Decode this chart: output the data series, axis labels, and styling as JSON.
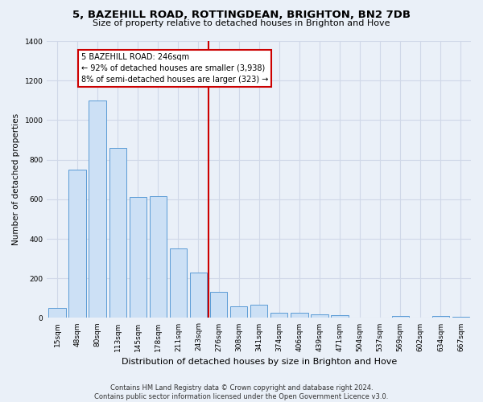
{
  "title1": "5, BAZEHILL ROAD, ROTTINGDEAN, BRIGHTON, BN2 7DB",
  "title2": "Size of property relative to detached houses in Brighton and Hove",
  "xlabel": "Distribution of detached houses by size in Brighton and Hove",
  "ylabel": "Number of detached properties",
  "footer1": "Contains HM Land Registry data © Crown copyright and database right 2024.",
  "footer2": "Contains public sector information licensed under the Open Government Licence v3.0.",
  "categories": [
    "15sqm",
    "48sqm",
    "80sqm",
    "113sqm",
    "145sqm",
    "178sqm",
    "211sqm",
    "243sqm",
    "276sqm",
    "308sqm",
    "341sqm",
    "374sqm",
    "406sqm",
    "439sqm",
    "471sqm",
    "504sqm",
    "537sqm",
    "569sqm",
    "602sqm",
    "634sqm",
    "667sqm"
  ],
  "values": [
    50,
    750,
    1100,
    860,
    610,
    615,
    350,
    230,
    130,
    60,
    65,
    25,
    25,
    20,
    12,
    0,
    0,
    8,
    0,
    10,
    5
  ],
  "bar_color": "#cce0f5",
  "bar_edge_color": "#5b9bd5",
  "vline_x": 7.5,
  "vline_color": "#cc0000",
  "annotation_title": "5 BAZEHILL ROAD: 246sqm",
  "annotation_line1": "← 92% of detached houses are smaller (3,938)",
  "annotation_line2": "8% of semi-detached houses are larger (323) →",
  "annotation_box_color": "#ffffff",
  "annotation_box_edge": "#cc0000",
  "ylim": [
    0,
    1400
  ],
  "yticks": [
    0,
    200,
    400,
    600,
    800,
    1000,
    1200,
    1400
  ],
  "grid_color": "#d0d8e8",
  "bg_color": "#eaf0f8",
  "title1_fontsize": 9.5,
  "title2_fontsize": 8.0,
  "xlabel_fontsize": 8.0,
  "ylabel_fontsize": 7.5,
  "footer_fontsize": 6.0,
  "tick_fontsize": 6.5
}
